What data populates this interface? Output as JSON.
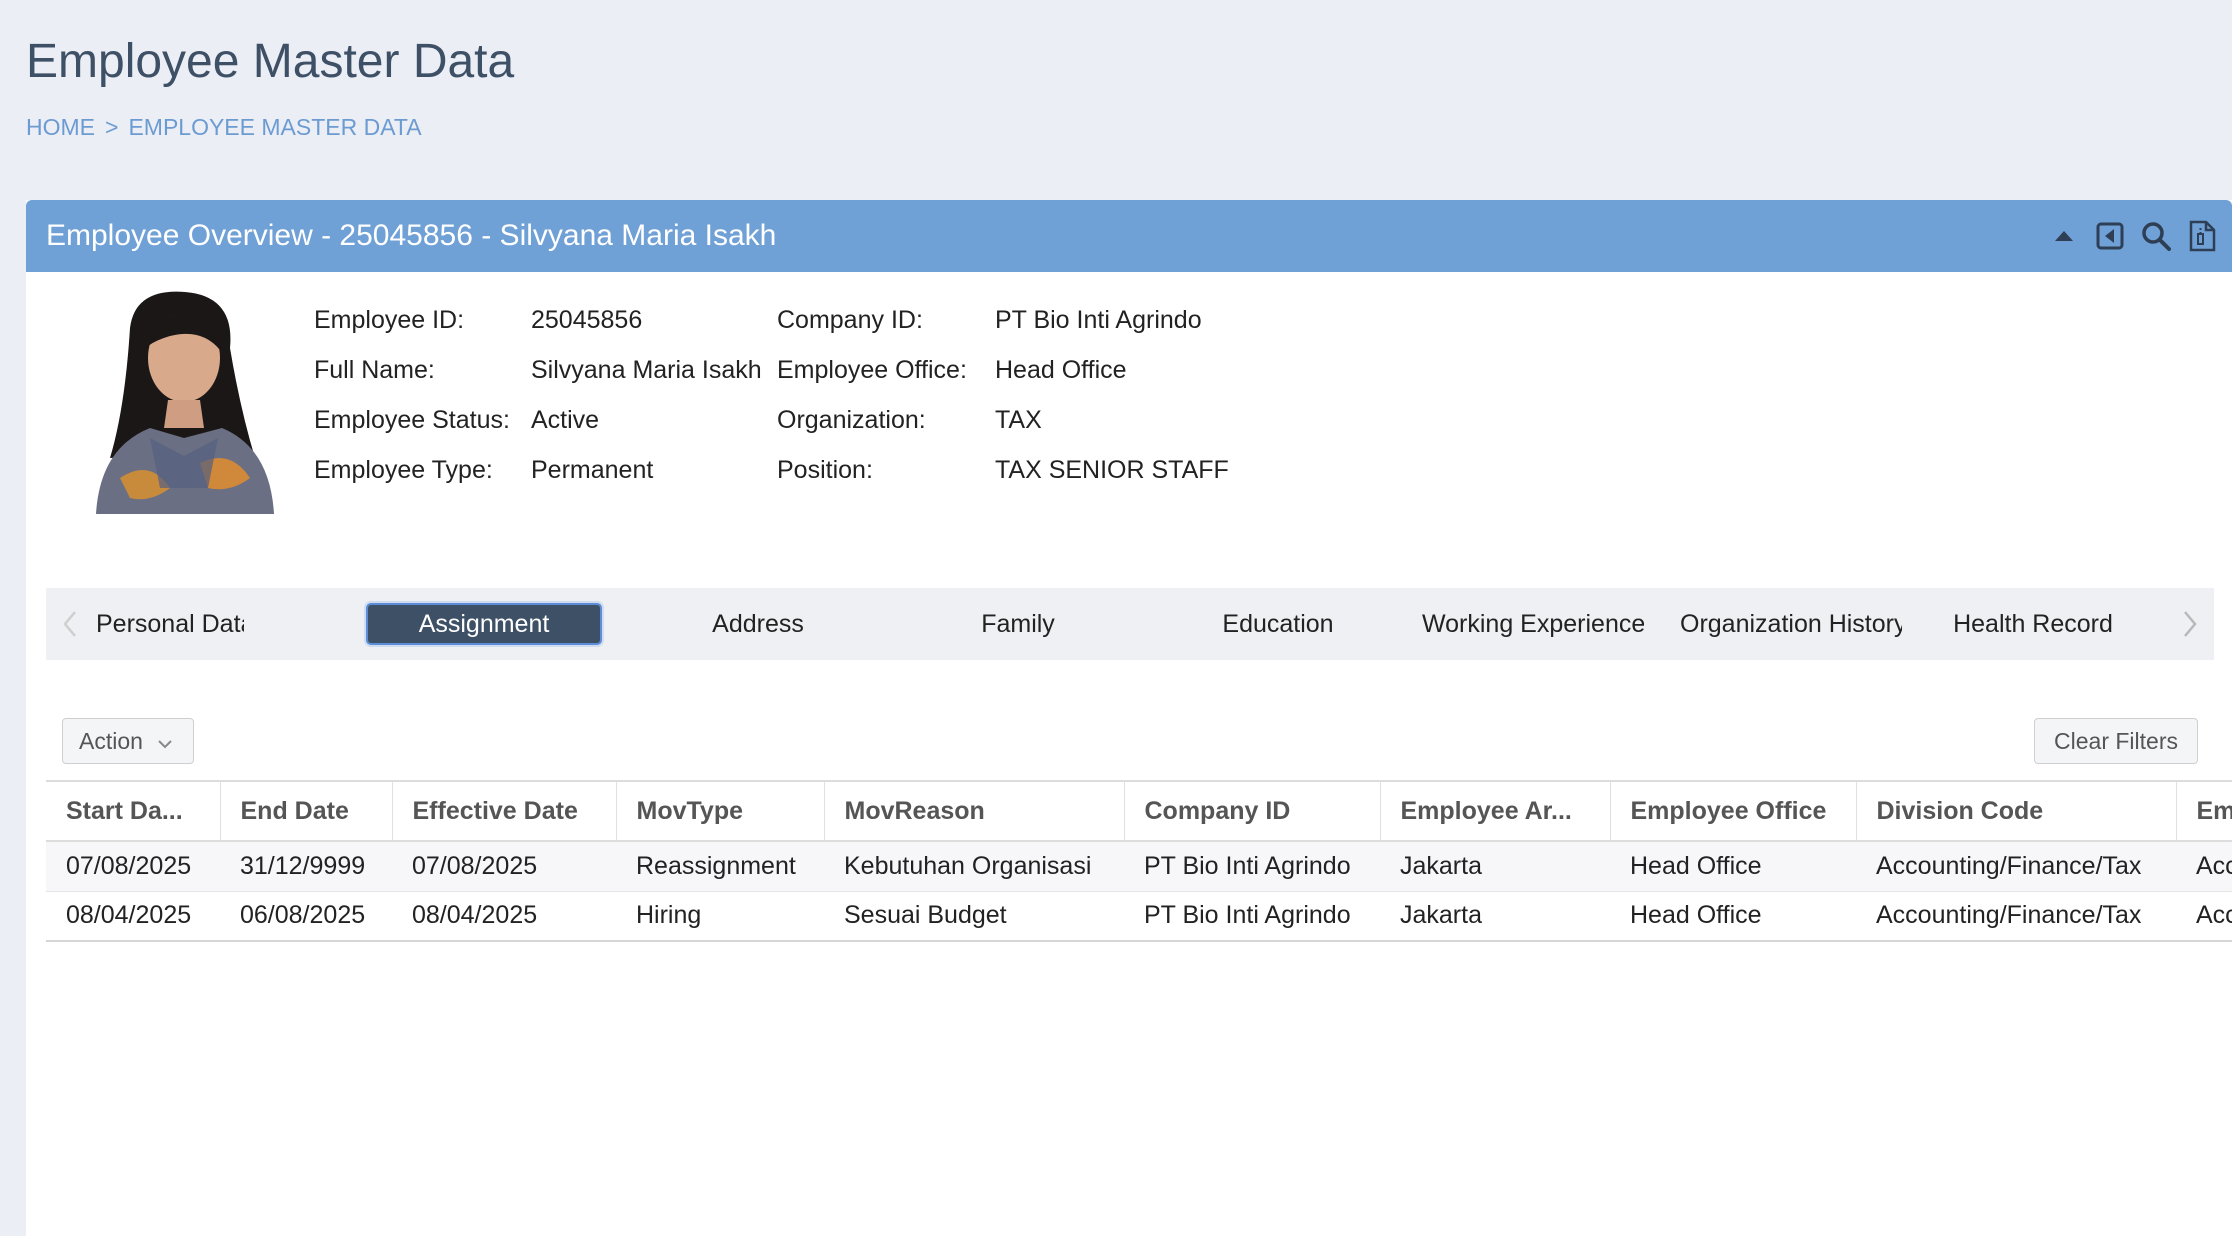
{
  "page": {
    "title": "Employee Master Data",
    "breadcrumb": [
      "HOME",
      ">",
      "EMPLOYEE MASTER DATA"
    ]
  },
  "panel": {
    "title": "Employee Overview - 25045856 - Silvyana Maria Isakh",
    "tools": [
      "collapse-up-icon",
      "back-icon",
      "search-icon",
      "document-icon"
    ]
  },
  "employee": {
    "fields_left": [
      {
        "label": "Employee ID:",
        "value": "25045856"
      },
      {
        "label": "Full Name:",
        "value": "Silvyana Maria Isakh"
      },
      {
        "label": "Employee Status:",
        "value": "Active"
      },
      {
        "label": "Employee Type:",
        "value": "Permanent"
      }
    ],
    "fields_right": [
      {
        "label": "Company ID:",
        "value": "PT Bio Inti Agrindo"
      },
      {
        "label": "Employee Office:",
        "value": "Head Office"
      },
      {
        "label": "Organization:",
        "value": "TAX"
      },
      {
        "label": "Position:",
        "value": "TAX SENIOR STAFF"
      }
    ]
  },
  "tabs": [
    {
      "label": "Personal Data"
    },
    {
      "label": "Assignment",
      "active": true
    },
    {
      "label": "Address"
    },
    {
      "label": "Family"
    },
    {
      "label": "Education"
    },
    {
      "label": "Working Experience"
    },
    {
      "label": "Organization History"
    },
    {
      "label": "Health Record"
    }
  ],
  "toolbar": {
    "action_label": "Action",
    "clear_filters_label": "Clear Filters"
  },
  "table": {
    "columns": [
      "Start Da...",
      "End Date",
      "Effective Date",
      "MovType",
      "MovReason",
      "Company ID",
      "Employee Ar...",
      "Employee Office",
      "Division Code",
      "Employee"
    ],
    "rows": [
      [
        "07/08/2025",
        "31/12/9999",
        "07/08/2025",
        "Reassignment",
        "Kebutuhan Organisasi",
        "PT Bio Inti Agrindo",
        "Jakarta",
        "Head Office",
        "Accounting/Finance/Tax",
        "Accounting"
      ],
      [
        "08/04/2025",
        "06/08/2025",
        "08/04/2025",
        "Hiring",
        "Sesuai Budget",
        "PT Bio Inti Agrindo",
        "Jakarta",
        "Head Office",
        "Accounting/Finance/Tax",
        "Accounting"
      ]
    ]
  }
}
